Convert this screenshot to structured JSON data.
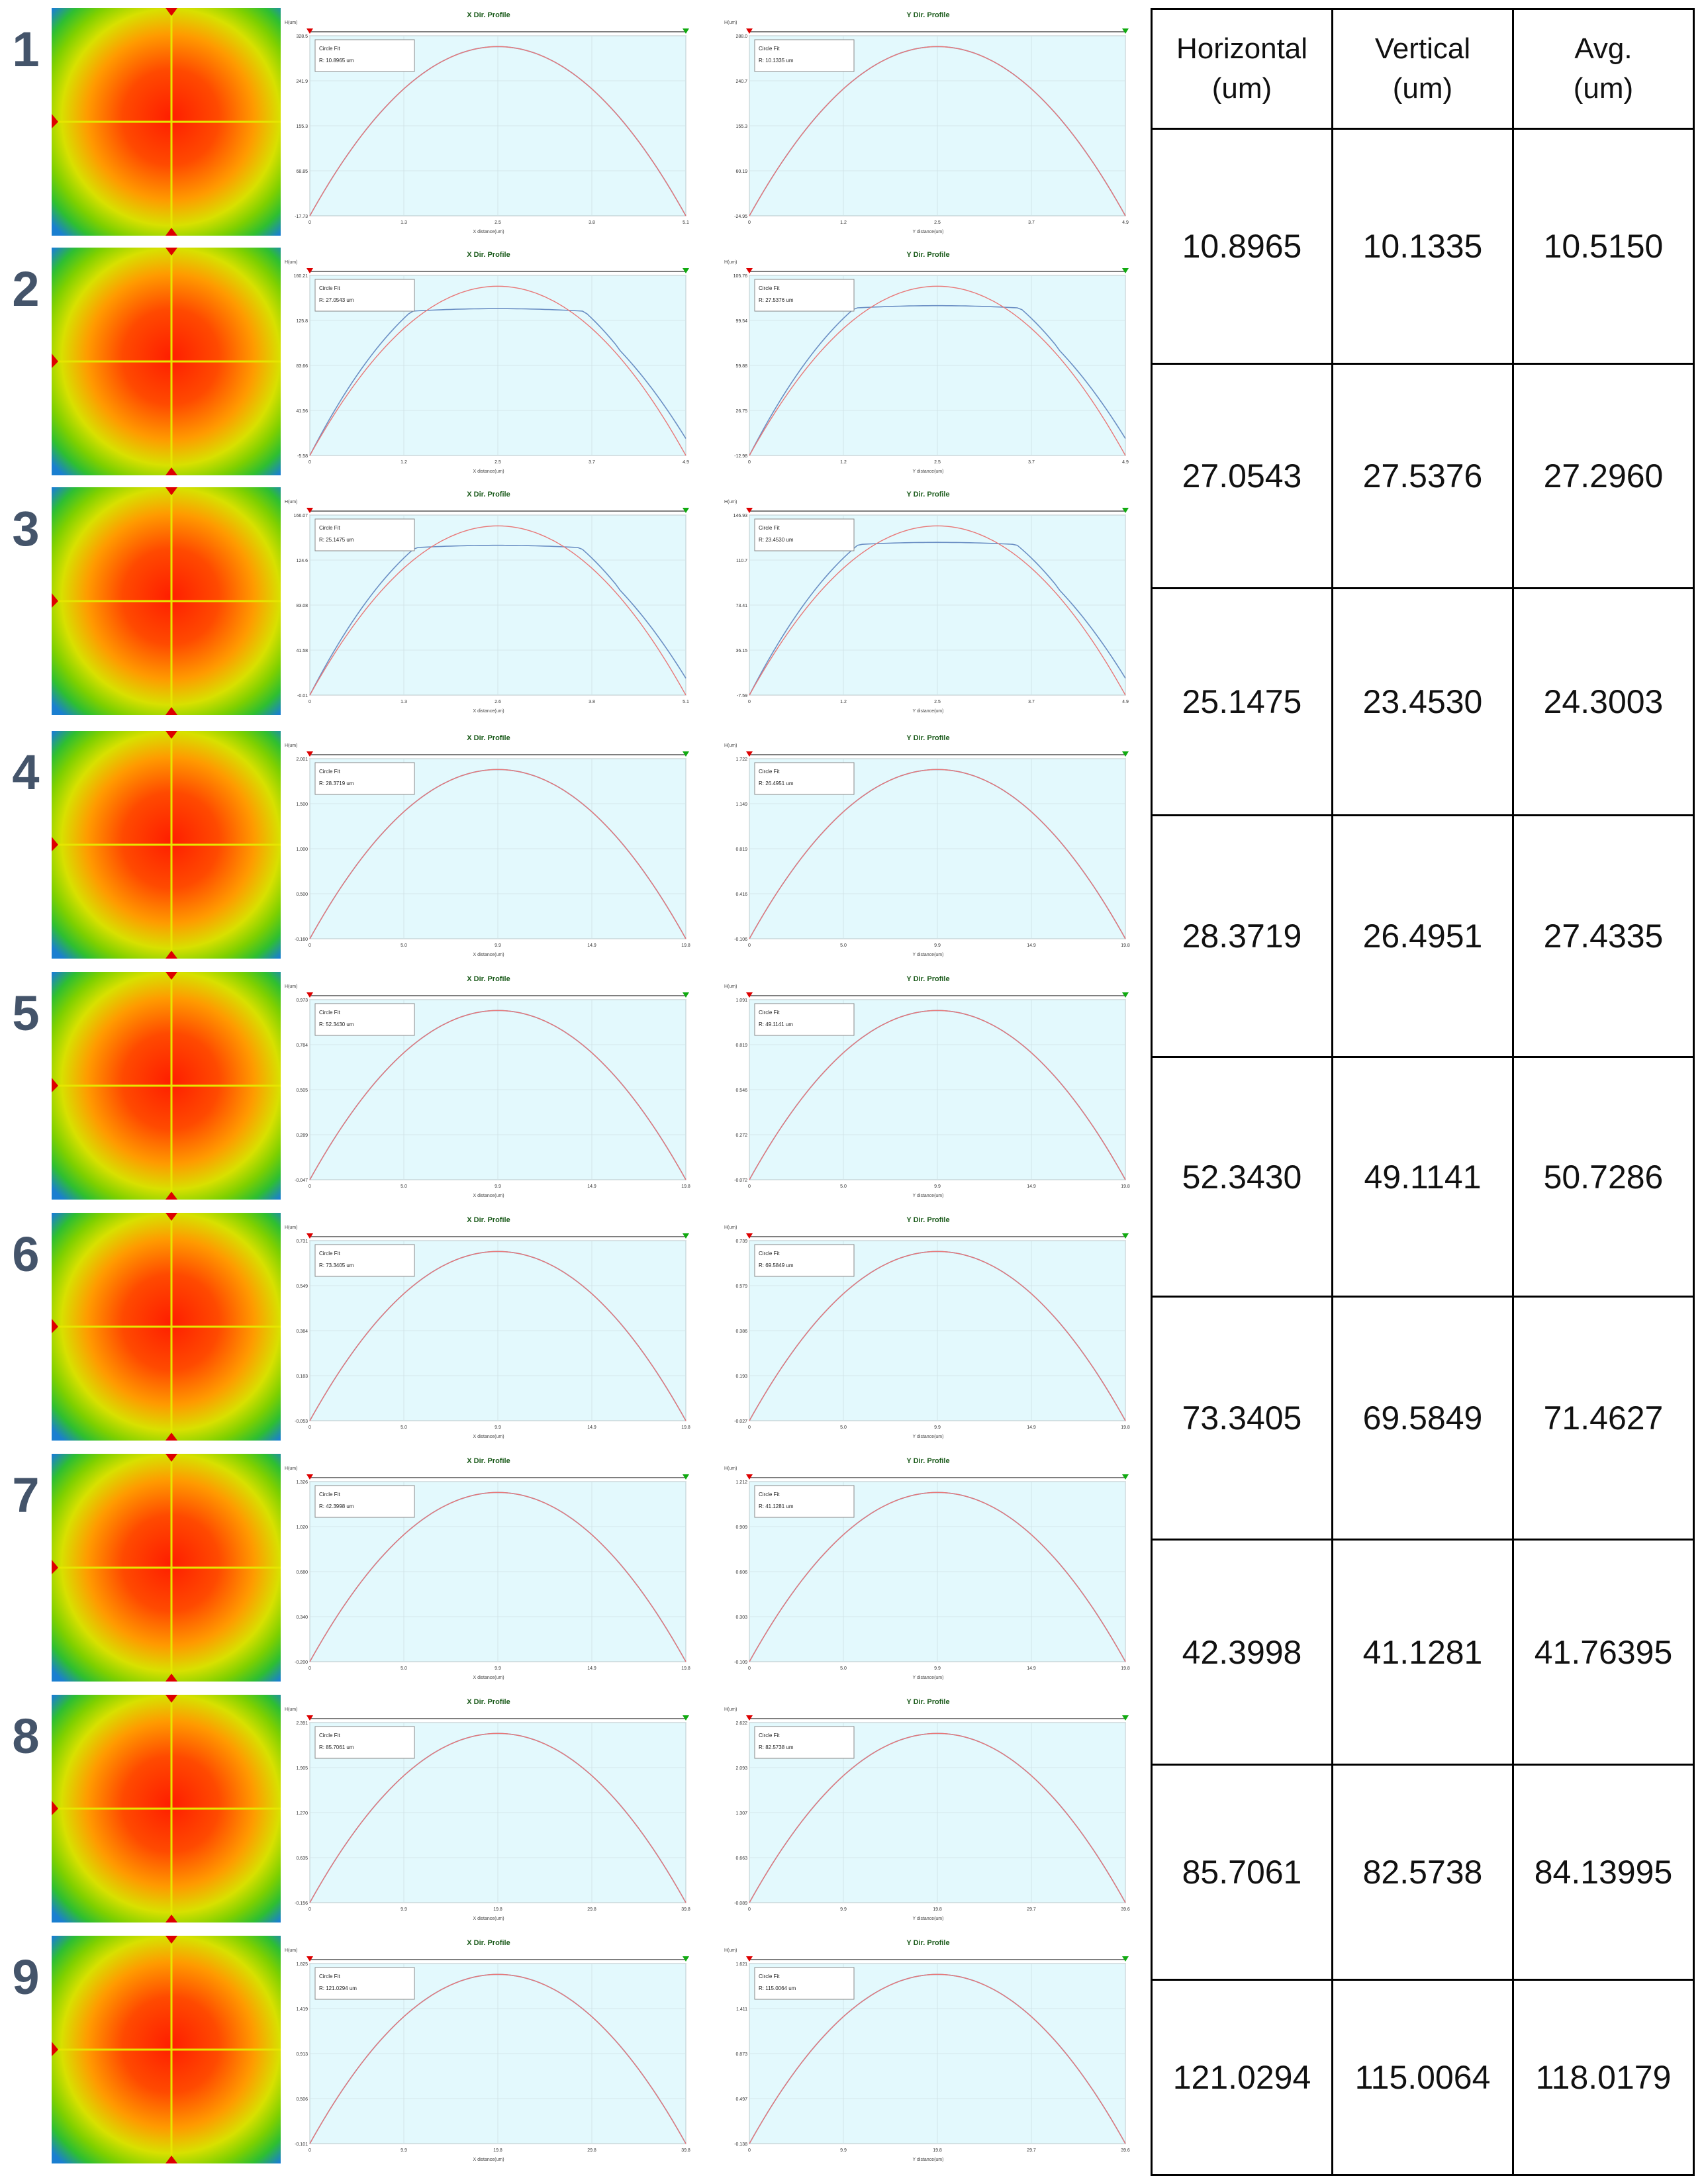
{
  "colors": {
    "row_number": "#44546a",
    "plot_bg": "#e3f9fd",
    "measured_line": "#6b8fc4",
    "fit_line": "#e87878",
    "cursor_line": "#e6e600",
    "heat_center": "#ff2a00",
    "heat_edge": "#1fb83a"
  },
  "plot_labels": {
    "x_title": "X Dir. Profile",
    "y_title": "Y Dir. Profile",
    "fit_label": "Circle Fit",
    "y_unit": "H(um)",
    "x_axis_label": "X distance(um)",
    "y_axis_label": "Y distance(um)"
  },
  "table": {
    "headers": [
      {
        "line1": "Horizontal",
        "line2": "(um)"
      },
      {
        "line1": "Vertical",
        "line2": "(um)"
      },
      {
        "line1": "Avg.",
        "line2": "(um)"
      }
    ]
  },
  "rows": [
    {
      "number": "1",
      "horizontal": "10.8965",
      "vertical": "10.1335",
      "avg": "10.5150",
      "x_fit": "R: 10.8965 um",
      "y_fit": "R: 10.1335 um",
      "x_ticks": [
        "0",
        "1.3",
        "2.5",
        "3.8",
        "5.1"
      ],
      "y_ticks": [
        "0",
        "1.2",
        "2.5",
        "3.7",
        "4.9"
      ],
      "x_yticks": [
        "-17.73",
        "68.85",
        "155.3",
        "241.9",
        "328.5"
      ],
      "y_yticks": [
        "-24.95",
        "60.19",
        "155.3",
        "240.7",
        "288.0"
      ],
      "x_plateau": 0.0,
      "y_plateau": 0.0,
      "flat_x": 0.0,
      "flat_y": 0.0
    },
    {
      "number": "2",
      "horizontal": "27.0543",
      "vertical": "27.5376",
      "avg": "27.2960",
      "x_fit": "R: 27.0543 um",
      "y_fit": "R: 27.5376 um",
      "x_ticks": [
        "0",
        "1.2",
        "2.5",
        "3.7",
        "4.9"
      ],
      "y_ticks": [
        "0",
        "1.2",
        "2.5",
        "3.7",
        "4.9"
      ],
      "x_yticks": [
        "-5.58",
        "41.56",
        "83.66",
        "125.8",
        "160.21"
      ],
      "y_yticks": [
        "-12.98",
        "26.75",
        "59.88",
        "99.54",
        "105.76"
      ],
      "x_plateau": 0.55,
      "y_plateau": 0.5,
      "flat_x": 0.0,
      "flat_y": 0.0
    },
    {
      "number": "3",
      "horizontal": "25.1475",
      "vertical": "23.4530",
      "avg": "24.3003",
      "x_fit": "R: 25.1475 um",
      "y_fit": "R: 23.4530 um",
      "x_ticks": [
        "0",
        "1.3",
        "2.6",
        "3.8",
        "5.1"
      ],
      "y_ticks": [
        "0",
        "1.2",
        "2.5",
        "3.7",
        "4.9"
      ],
      "x_yticks": [
        "-0.01",
        "41.58",
        "83.08",
        "124.6",
        "166.07"
      ],
      "y_yticks": [
        "-7.59",
        "36.15",
        "73.41",
        "110.7",
        "146.93"
      ],
      "x_plateau": 0.5,
      "y_plateau": 0.45,
      "flat_x": 0.0,
      "flat_y": 0.0
    },
    {
      "number": "4",
      "horizontal": "28.3719",
      "vertical": "26.4951",
      "avg": "27.4335",
      "x_fit": "R: 28.3719 um",
      "y_fit": "R: 26.4951 um",
      "x_ticks": [
        "0",
        "5.0",
        "9.9",
        "14.9",
        "19.8"
      ],
      "y_ticks": [
        "0",
        "5.0",
        "9.9",
        "14.9",
        "19.8"
      ],
      "x_yticks": [
        "-0.160",
        "0.500",
        "1.000",
        "1.500",
        "2.001"
      ],
      "y_yticks": [
        "-0.106",
        "0.416",
        "0.819",
        "1.149",
        "1.722"
      ],
      "x_plateau": 0.0,
      "y_plateau": 0.0,
      "flat_x": 0.0,
      "flat_y": 0.0
    },
    {
      "number": "5",
      "horizontal": "52.3430",
      "vertical": "49.1141",
      "avg": "50.7286",
      "x_fit": "R: 52.3430 um",
      "y_fit": "R: 49.1141 um",
      "x_ticks": [
        "0",
        "5.0",
        "9.9",
        "14.9",
        "19.8"
      ],
      "y_ticks": [
        "0",
        "5.0",
        "9.9",
        "14.9",
        "19.8"
      ],
      "x_yticks": [
        "-0.047",
        "0.289",
        "0.505",
        "0.784",
        "0.973"
      ],
      "y_yticks": [
        "-0.072",
        "0.272",
        "0.546",
        "0.819",
        "1.091"
      ],
      "x_plateau": 0.0,
      "y_plateau": 0.0,
      "flat_x": 0.35,
      "flat_y": 0.3
    },
    {
      "number": "6",
      "horizontal": "73.3405",
      "vertical": "69.5849",
      "avg": "71.4627",
      "x_fit": "R: 73.3405 um",
      "y_fit": "R: 69.5849 um",
      "x_ticks": [
        "0",
        "5.0",
        "9.9",
        "14.9",
        "19.8"
      ],
      "y_ticks": [
        "0",
        "5.0",
        "9.9",
        "14.9",
        "19.8"
      ],
      "x_yticks": [
        "-0.053",
        "0.183",
        "0.384",
        "0.549",
        "0.731"
      ],
      "y_yticks": [
        "-0.027",
        "0.193",
        "0.386",
        "0.579",
        "0.739"
      ],
      "x_plateau": 0.0,
      "y_plateau": 0.0,
      "flat_x": 0.3,
      "flat_y": 0.25
    },
    {
      "number": "7",
      "horizontal": "42.3998",
      "vertical": "41.1281",
      "avg": "41.76395",
      "x_fit": "R: 42.3998 um",
      "y_fit": "R: 41.1281 um",
      "x_ticks": [
        "0",
        "5.0",
        "9.9",
        "14.9",
        "19.8"
      ],
      "y_ticks": [
        "0",
        "5.0",
        "9.9",
        "14.9",
        "19.8"
      ],
      "x_yticks": [
        "-0.200",
        "0.340",
        "0.680",
        "1.020",
        "1.326"
      ],
      "y_yticks": [
        "-0.109",
        "0.303",
        "0.606",
        "0.909",
        "1.212"
      ],
      "x_plateau": 0.0,
      "y_plateau": 0.0,
      "flat_x": 0.05,
      "flat_y": 0.05
    },
    {
      "number": "8",
      "horizontal": "85.7061",
      "vertical": "82.5738",
      "avg": "84.13995",
      "x_fit": "R: 85.7061 um",
      "y_fit": "R: 82.5738 um",
      "x_ticks": [
        "0",
        "9.9",
        "19.8",
        "29.8",
        "39.8"
      ],
      "y_ticks": [
        "0",
        "9.9",
        "19.8",
        "29.7",
        "39.6"
      ],
      "x_yticks": [
        "-0.156",
        "0.635",
        "1.270",
        "1.905",
        "2.391"
      ],
      "y_yticks": [
        "-0.089",
        "0.663",
        "1.307",
        "2.093",
        "2.622"
      ],
      "x_plateau": 0.0,
      "y_plateau": 0.0,
      "flat_x": 0.15,
      "flat_y": 0.1
    },
    {
      "number": "9",
      "horizontal": "121.0294",
      "vertical": "115.0064",
      "avg": "118.0179",
      "x_fit": "R: 121.0294 um",
      "y_fit": "R: 115.0064 um",
      "x_ticks": [
        "0",
        "9.9",
        "19.8",
        "29.8",
        "39.8"
      ],
      "y_ticks": [
        "0",
        "9.9",
        "19.8",
        "29.7",
        "39.6"
      ],
      "x_yticks": [
        "-0.101",
        "0.506",
        "0.913",
        "1.419",
        "1.825"
      ],
      "y_yticks": [
        "-0.138",
        "0.497",
        "0.873",
        "1.411",
        "1.621"
      ],
      "x_plateau": 0.0,
      "y_plateau": 0.0,
      "flat_x": 0.25,
      "flat_y": 0.2
    }
  ]
}
